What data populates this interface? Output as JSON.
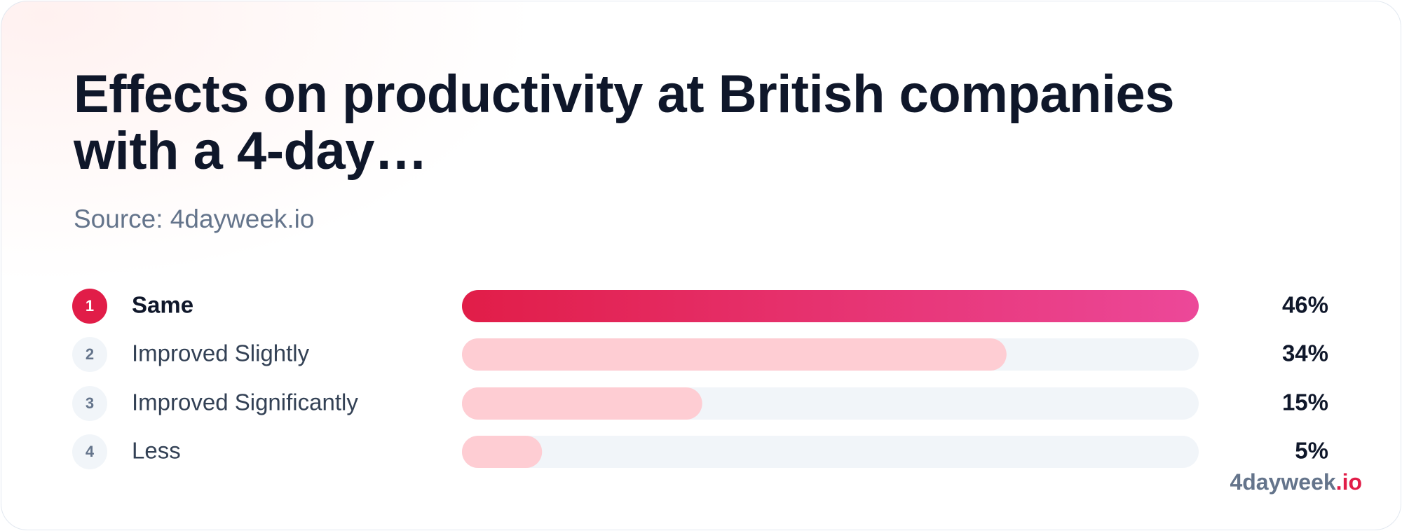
{
  "chart_data": {
    "type": "bar",
    "orientation": "horizontal",
    "title": "Effects on productivity at British companies with a 4-day…",
    "subtitle": "Source: 4dayweek.io",
    "ranks": [
      1,
      2,
      3,
      4
    ],
    "categories": [
      "Same",
      "Improved Slightly",
      "Improved Significantly",
      "Less"
    ],
    "values": [
      46,
      34,
      15,
      5
    ],
    "value_labels": [
      "46%",
      "34%",
      "15%",
      "5%"
    ],
    "xlim": [
      0,
      46
    ],
    "color": "#fecdd3",
    "highlight_gradient": [
      "#e11d48",
      "#ec4899"
    ],
    "track_color": "#f1f5f9",
    "brand": "4dayweek",
    "brand_suffix": ".io"
  }
}
